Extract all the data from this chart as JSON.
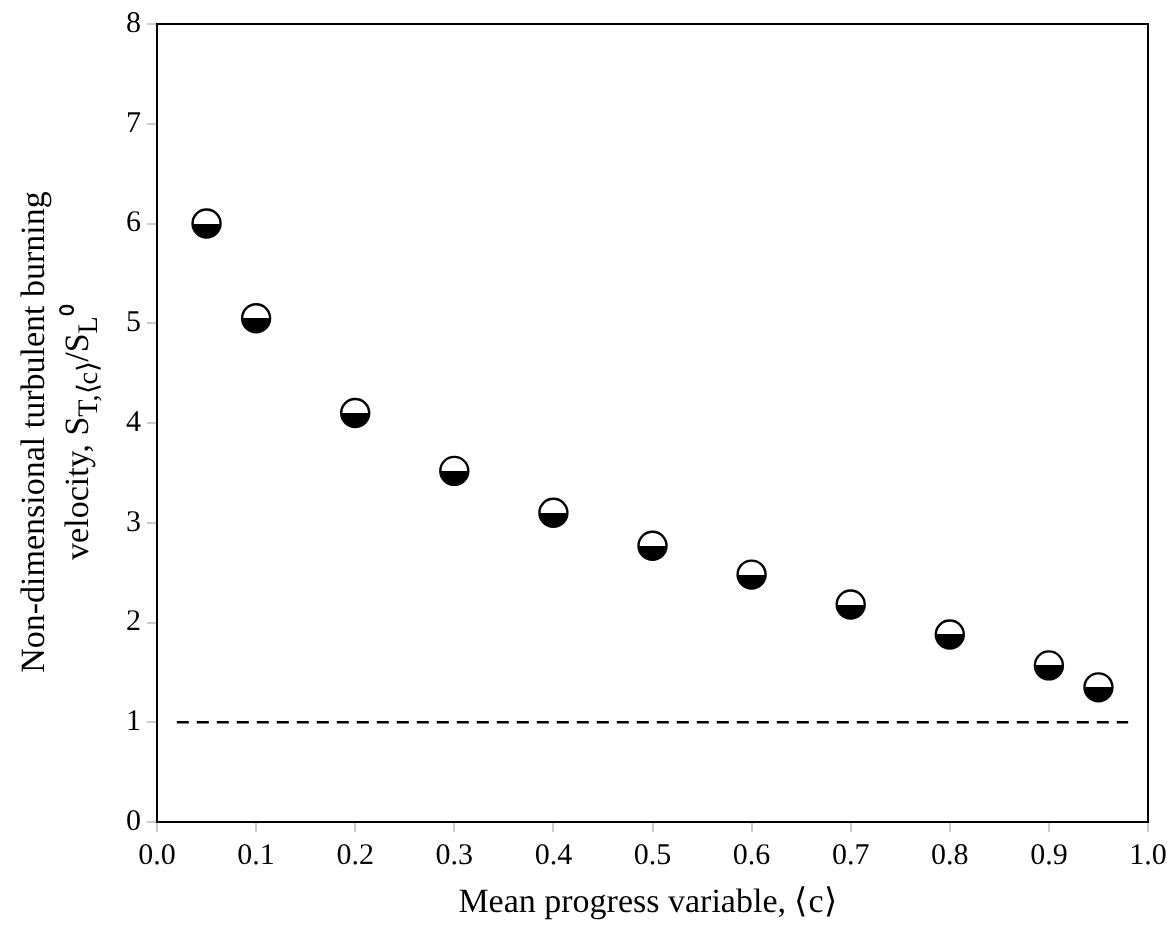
{
  "chart_data": {
    "type": "scatter",
    "xlabel": "Mean progress variable, ⟨c⟩",
    "ylabel": "Non-dimensional turbulent burning velocity, S$_{T,⟨c⟩}$/S$_{L}$⁰",
    "x": [
      0.05,
      0.1,
      0.2,
      0.3,
      0.4,
      0.5,
      0.6,
      0.7,
      0.8,
      0.9,
      0.95
    ],
    "series": [
      {
        "color": "#000000",
        "values": [
          6.0,
          5.05,
          4.1,
          3.52,
          3.1,
          2.77,
          2.48,
          2.18,
          1.88,
          1.57,
          1.35
        ]
      }
    ],
    "xlim": [
      0,
      1
    ],
    "xticks": [
      {
        "value": 0,
        "label": "0.0"
      },
      {
        "value": 0.1,
        "label": "0.1"
      },
      {
        "value": 0.2,
        "label": "0.2"
      },
      {
        "value": 0.3,
        "label": "0.3"
      },
      {
        "value": 0.4,
        "label": "0.4"
      },
      {
        "value": 0.5,
        "label": "0.5"
      },
      {
        "value": 0.6,
        "label": "0.6"
      },
      {
        "value": 0.7,
        "label": "0.7"
      },
      {
        "value": 0.8,
        "label": "0.8"
      },
      {
        "value": 0.9,
        "label": "0.9"
      },
      {
        "value": 1,
        "label": "1.0"
      }
    ],
    "ylim": [
      0,
      8
    ],
    "yticks": [
      0,
      1,
      2,
      3,
      4,
      5,
      6,
      7,
      8
    ],
    "ref_lines": [
      {
        "axis": "y",
        "value": 1,
        "label": null,
        "color": "#000000",
        "line_style": "dashed"
      }
    ],
    "marker": "circle",
    "grid": false,
    "legend": false
  }
}
